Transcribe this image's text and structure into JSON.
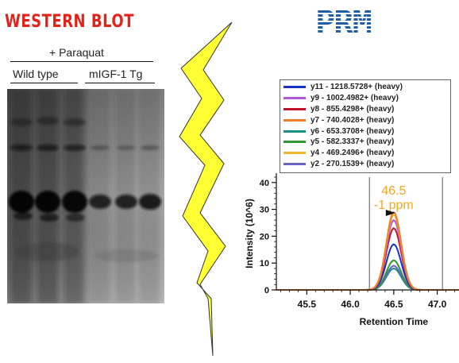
{
  "western_blot": {
    "title": "WESTERN BLOT",
    "treatment_label": "+ Paraquat",
    "group_labels": [
      "Wild type",
      "mIGF-1 Tg"
    ]
  },
  "prm": {
    "title": "PRM"
  },
  "chart_data": {
    "type": "line",
    "xlabel": "Retention Time",
    "ylabel": "Intensity (10^6)",
    "x_ticks": [
      45.5,
      46.0,
      46.5,
      47.0
    ],
    "y_ticks": [
      0,
      10,
      20,
      30,
      40
    ],
    "xlim": [
      45.15,
      47.25
    ],
    "ylim": [
      0,
      42
    ],
    "peak_annotation": {
      "retention_time": "46.5",
      "mass_error": "-1 ppm",
      "color": "#f5a623"
    },
    "integration_bounds": [
      46.22,
      47.06
    ],
    "series": [
      {
        "name": "y11 - 1218.5728+ (heavy)",
        "color": "#1533c9",
        "peak_x": 46.5,
        "peak_y": 17
      },
      {
        "name": "y9 - 1002.4982+ (heavy)",
        "color": "#b357d6",
        "peak_x": 46.5,
        "peak_y": 26
      },
      {
        "name": "y8 - 855.4298+ (heavy)",
        "color": "#c0122a",
        "peak_x": 46.5,
        "peak_y": 23
      },
      {
        "name": "y7 - 740.4028+ (heavy)",
        "color": "#f07d2a",
        "peak_x": 46.5,
        "peak_y": 29
      },
      {
        "name": "y6 - 653.3708+ (heavy)",
        "color": "#1a8f8a",
        "peak_x": 46.5,
        "peak_y": 8
      },
      {
        "name": "y5 - 582.3337+ (heavy)",
        "color": "#2e9a2e",
        "peak_x": 46.5,
        "peak_y": 11
      },
      {
        "name": "y4 - 469.2496+ (heavy)",
        "color": "#f2b632",
        "peak_x": 46.5,
        "peak_y": 28
      },
      {
        "name": "y2 - 270.1539+ (heavy)",
        "color": "#6a63c4",
        "peak_x": 46.5,
        "peak_y": 9
      }
    ]
  },
  "colors": {
    "western_blot_title": "#e2231a",
    "prm_title": "#1f5fa5",
    "bolt_fill": "#ffff33"
  }
}
